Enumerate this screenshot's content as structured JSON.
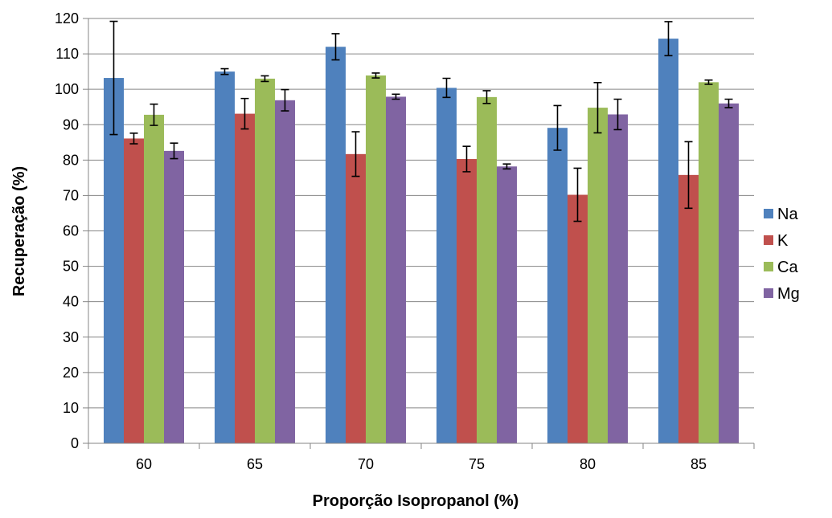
{
  "chart_data": {
    "type": "bar",
    "title": "",
    "xlabel": "Proporção Isopropanol (%)",
    "ylabel": "Recuperação (%)",
    "ylim": [
      0,
      120
    ],
    "yticks": [
      "0",
      "10",
      "20",
      "30",
      "40",
      "50",
      "60",
      "70",
      "80",
      "90",
      "100",
      "110",
      "120"
    ],
    "grid": true,
    "legend_position": "right",
    "categories": [
      "60",
      "65",
      "70",
      "75",
      "80",
      "85"
    ],
    "series": [
      {
        "name": "Na",
        "color": "#4F81BD",
        "values": [
          103.2,
          105.0,
          112.0,
          100.4,
          89.1,
          114.3
        ],
        "errors": [
          16.0,
          0.8,
          3.7,
          2.7,
          6.3,
          4.8
        ]
      },
      {
        "name": "K",
        "color": "#C0504D",
        "values": [
          86.1,
          93.1,
          81.7,
          80.3,
          70.2,
          75.8
        ],
        "errors": [
          1.5,
          4.3,
          6.3,
          3.6,
          7.5,
          9.4
        ]
      },
      {
        "name": "Ca",
        "color": "#9BBB59",
        "values": [
          92.8,
          103.0,
          103.9,
          97.8,
          94.8,
          102.0
        ],
        "errors": [
          3.0,
          0.8,
          0.7,
          1.8,
          7.1,
          0.6
        ]
      },
      {
        "name": "Mg",
        "color": "#8064A2",
        "values": [
          82.6,
          96.9,
          97.9,
          78.2,
          92.9,
          96.0
        ],
        "errors": [
          2.2,
          3.0,
          0.7,
          0.7,
          4.3,
          1.2
        ]
      }
    ]
  }
}
